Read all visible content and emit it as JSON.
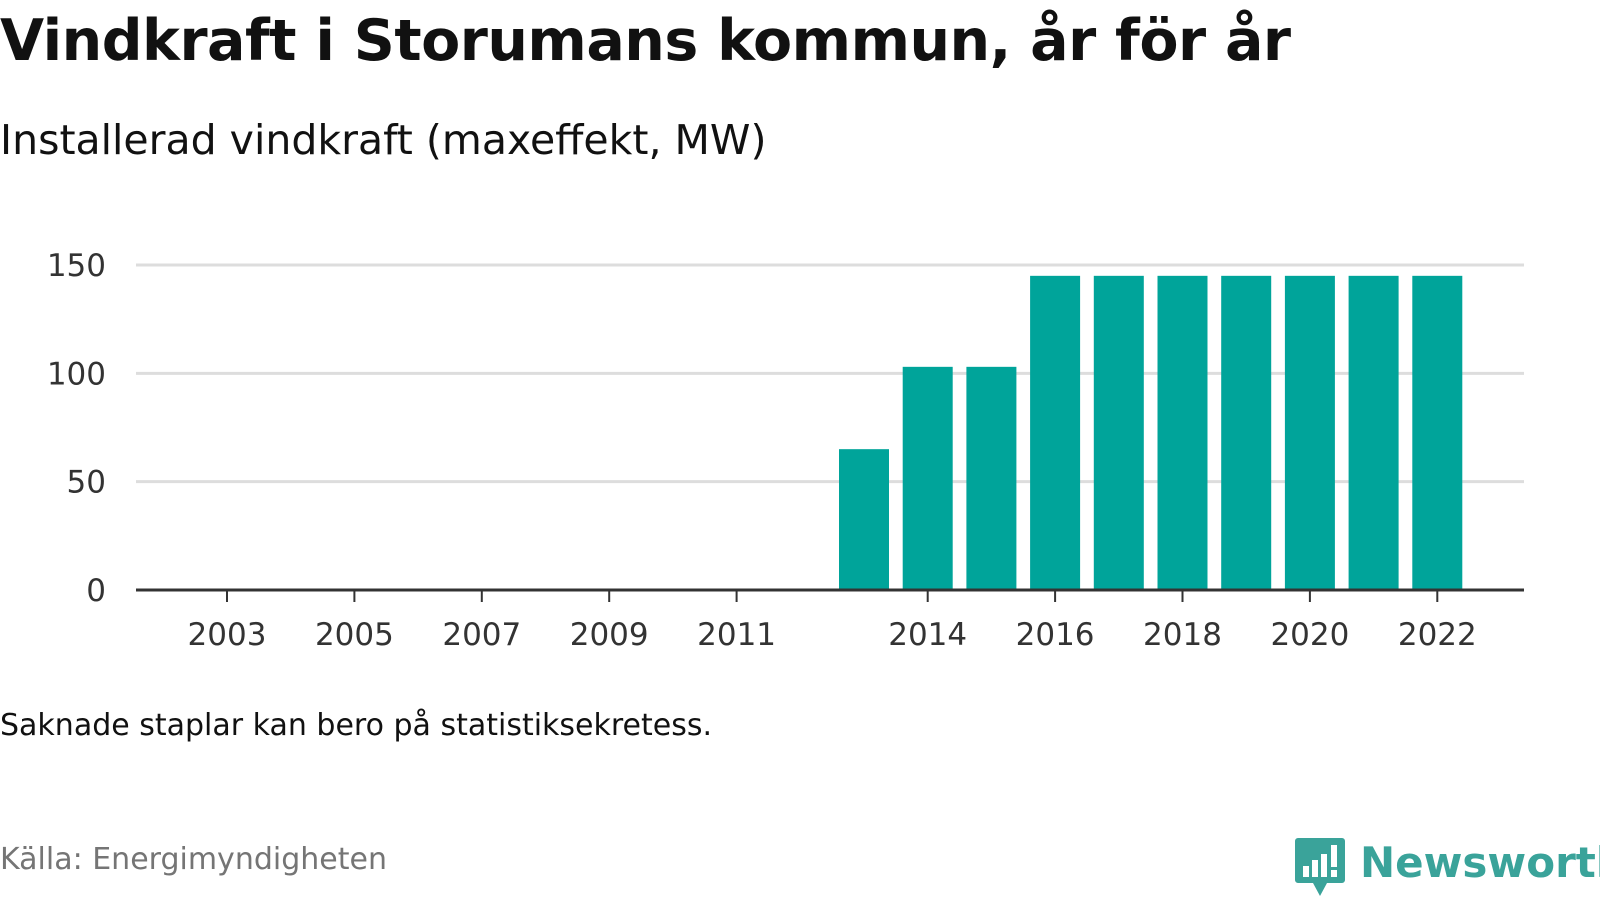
{
  "title": "Vindkraft i Storumans kommun, år för år",
  "subtitle": "Installerad vindkraft (maxeffekt, MW)",
  "note": "Saknade staplar kan bero på statistiksekretess.",
  "source": "Källa: Energimyndigheten",
  "brand": {
    "name": "Newsworthy",
    "icon": "bar-chart-speech-bubble-icon",
    "color": "#3aa39a"
  },
  "colors": {
    "bar": "#00a49a",
    "grid": "#dddddd",
    "axis": "#333333"
  },
  "chart_data": {
    "type": "bar",
    "categories": [
      "2003",
      "2004",
      "2005",
      "2006",
      "2007",
      "2008",
      "2009",
      "2010",
      "2011",
      "2012",
      "2013",
      "2014",
      "2015",
      "2016",
      "2017",
      "2018",
      "2019",
      "2020",
      "2021",
      "2022"
    ],
    "values": [
      0,
      0,
      0,
      0,
      0,
      0,
      0,
      0,
      0,
      0,
      65,
      103,
      103,
      145,
      145,
      145,
      145,
      145,
      145,
      145
    ],
    "x_tick_labels": [
      "2003",
      "2005",
      "2007",
      "2009",
      "2011",
      "2014",
      "2016",
      "2018",
      "2020",
      "2022"
    ],
    "y_ticks": [
      0,
      50,
      100,
      150
    ],
    "ylim": [
      0,
      150
    ],
    "title": "Vindkraft i Storumans kommun, år för år",
    "subtitle": "Installerad vindkraft (maxeffekt, MW)",
    "xlabel": "",
    "ylabel": "",
    "grid": true,
    "legend": "none"
  }
}
